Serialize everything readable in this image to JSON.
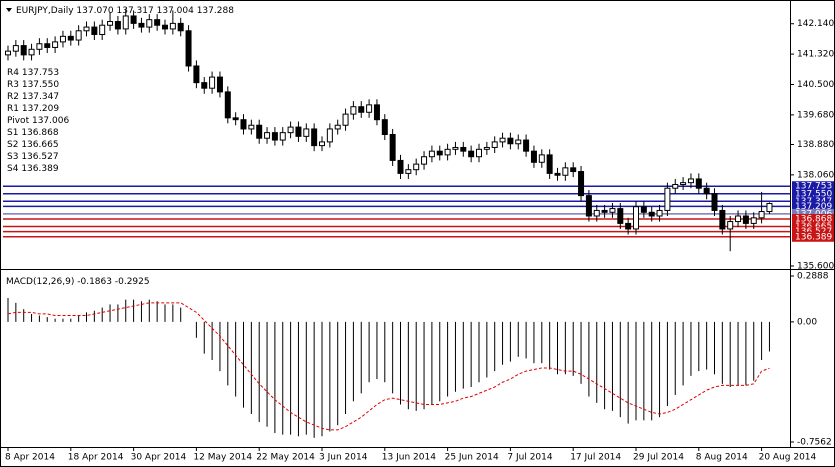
{
  "chart_data": {
    "type": "candlestick",
    "symbol": "EURJPY,Daily",
    "header_values": [
      "137.070",
      "137.317",
      "137.004",
      "137.288"
    ],
    "categories": [
      "8 Apr 2014",
      null,
      null,
      null,
      null,
      null,
      null,
      null,
      "18 Apr 2014",
      null,
      null,
      null,
      null,
      null,
      null,
      null,
      "30 Apr 2014",
      null,
      null,
      null,
      null,
      null,
      null,
      null,
      "12 May 2014",
      null,
      null,
      null,
      null,
      null,
      null,
      null,
      "22 May 2014",
      null,
      null,
      null,
      null,
      null,
      null,
      null,
      "3 Jun 2014",
      null,
      null,
      null,
      null,
      null,
      null,
      null,
      "13 Jun 2014",
      null,
      null,
      null,
      null,
      null,
      null,
      null,
      "25 Jun 2014",
      null,
      null,
      null,
      null,
      null,
      null,
      null,
      "7 Jul 2014",
      null,
      null,
      null,
      null,
      null,
      null,
      null,
      "17 Jul 2014",
      null,
      null,
      null,
      null,
      null,
      null,
      null,
      "29 Jul 2014",
      null,
      null,
      null,
      null,
      null,
      null,
      null,
      "8 Aug 2014",
      null,
      null,
      null,
      null,
      null,
      null,
      null,
      "20 Aug 2014",
      null
    ],
    "open": [
      141.3,
      141.4,
      141.55,
      141.3,
      141.45,
      141.6,
      141.5,
      141.65,
      141.8,
      141.7,
      141.95,
      142.05,
      141.85,
      142.1,
      142.2,
      142.0,
      142.35,
      142.15,
      142.05,
      142.25,
      142.1,
      142.0,
      142.15,
      141.95,
      141.0,
      140.55,
      140.4,
      140.7,
      140.3,
      139.6,
      139.55,
      139.3,
      139.4,
      139.05,
      139.2,
      139.0,
      139.2,
      139.35,
      139.1,
      139.3,
      138.85,
      138.95,
      139.3,
      139.4,
      139.7,
      139.9,
      139.75,
      139.95,
      139.55,
      139.15,
      138.45,
      138.1,
      138.2,
      138.35,
      138.55,
      138.7,
      138.6,
      138.75,
      138.8,
      138.7,
      138.55,
      138.75,
      138.8,
      138.95,
      139.05,
      138.9,
      139.0,
      138.7,
      138.4,
      138.6,
      138.1,
      138.05,
      138.25,
      138.15,
      137.5,
      136.95,
      137.1,
      137.05,
      137.15,
      136.75,
      136.6,
      137.2,
      137.05,
      136.95,
      137.1,
      137.7,
      137.8,
      137.85,
      137.95,
      137.7,
      137.55,
      137.1,
      136.6,
      136.8,
      136.95,
      136.75,
      136.9,
      137.07
    ],
    "high": [
      141.55,
      141.7,
      141.7,
      141.6,
      141.75,
      141.75,
      141.8,
      141.95,
      141.95,
      142.1,
      142.2,
      142.2,
      142.25,
      142.45,
      142.35,
      142.55,
      142.5,
      142.3,
      142.4,
      142.4,
      142.25,
      142.5,
      142.3,
      142.1,
      141.15,
      140.7,
      140.85,
      140.85,
      140.45,
      139.75,
      139.7,
      139.55,
      139.55,
      139.35,
      139.35,
      139.35,
      139.5,
      139.5,
      139.45,
      139.45,
      139.1,
      139.45,
      139.55,
      139.85,
      140.05,
      140.05,
      140.1,
      140.1,
      139.7,
      139.3,
      138.6,
      138.35,
      138.5,
      138.7,
      138.85,
      138.85,
      138.9,
      138.95,
      138.95,
      138.85,
      138.9,
      138.95,
      139.1,
      139.2,
      139.2,
      139.15,
      139.15,
      138.85,
      138.75,
      138.75,
      138.25,
      138.4,
      138.4,
      138.3,
      137.65,
      137.25,
      137.25,
      137.3,
      137.3,
      136.9,
      137.35,
      137.35,
      137.2,
      137.25,
      137.85,
      137.95,
      138.0,
      138.1,
      138.1,
      137.85,
      137.7,
      137.25,
      136.95,
      137.1,
      137.1,
      137.05,
      137.6,
      137.317
    ],
    "low": [
      141.15,
      141.25,
      141.15,
      141.15,
      141.3,
      141.35,
      141.35,
      141.5,
      141.55,
      141.55,
      141.8,
      141.7,
      141.7,
      141.95,
      141.85,
      141.85,
      142.0,
      141.9,
      141.9,
      141.95,
      141.85,
      141.85,
      141.8,
      140.85,
      140.4,
      140.25,
      140.25,
      140.15,
      139.45,
      139.4,
      139.15,
      139.15,
      138.9,
      138.9,
      138.85,
      138.85,
      139.05,
      138.95,
      138.95,
      138.7,
      138.7,
      138.8,
      139.15,
      139.25,
      139.55,
      139.6,
      139.6,
      139.4,
      139.0,
      138.3,
      137.95,
      137.95,
      138.05,
      138.2,
      138.4,
      138.45,
      138.45,
      138.6,
      138.55,
      138.4,
      138.4,
      138.6,
      138.65,
      138.8,
      138.75,
      138.75,
      138.55,
      138.25,
      138.25,
      137.95,
      137.9,
      137.9,
      138.0,
      137.35,
      136.8,
      136.8,
      136.9,
      136.9,
      136.6,
      136.45,
      136.45,
      136.9,
      136.8,
      136.8,
      136.95,
      137.55,
      137.65,
      137.7,
      137.55,
      137.4,
      136.95,
      136.45,
      136.0,
      136.65,
      136.6,
      136.6,
      136.75,
      137.004
    ],
    "close": [
      141.4,
      141.55,
      141.3,
      141.45,
      141.6,
      141.5,
      141.65,
      141.8,
      141.7,
      141.95,
      142.05,
      141.85,
      142.1,
      142.2,
      142.0,
      142.35,
      142.15,
      142.05,
      142.25,
      142.1,
      142.0,
      142.15,
      141.95,
      141.0,
      140.55,
      140.4,
      140.7,
      140.3,
      139.6,
      139.55,
      139.3,
      139.4,
      139.05,
      139.2,
      139.0,
      139.2,
      139.35,
      139.1,
      139.3,
      138.85,
      138.95,
      139.3,
      139.4,
      139.7,
      139.9,
      139.75,
      139.95,
      139.55,
      139.15,
      138.45,
      138.1,
      138.2,
      138.35,
      138.55,
      138.7,
      138.6,
      138.75,
      138.8,
      138.7,
      138.55,
      138.75,
      138.8,
      138.95,
      139.05,
      138.9,
      139.0,
      138.7,
      138.4,
      138.6,
      138.1,
      138.05,
      138.25,
      138.15,
      137.5,
      136.95,
      137.1,
      137.05,
      137.15,
      136.75,
      136.6,
      137.2,
      137.05,
      136.95,
      137.1,
      137.7,
      137.8,
      137.85,
      137.95,
      137.7,
      137.55,
      137.1,
      136.6,
      136.8,
      136.95,
      136.75,
      136.9,
      137.07,
      137.288
    ],
    "ylim": [
      135.6,
      142.7
    ],
    "yticks": [
      {
        "value": 142.14,
        "label": "142.140"
      },
      {
        "value": 141.32,
        "label": "141.320"
      },
      {
        "value": 140.5,
        "label": "140.500"
      },
      {
        "value": 139.68,
        "label": "139.680"
      },
      {
        "value": 138.88,
        "label": "138.880"
      },
      {
        "value": 138.06,
        "label": "138.060"
      },
      {
        "value": 135.6,
        "label": "135.600"
      }
    ],
    "levels": [
      {
        "name": "R4",
        "value": 137.753,
        "label": "137.753",
        "color": "#1a1aa6"
      },
      {
        "name": "R3",
        "value": 137.55,
        "label": "137.550",
        "color": "#1a1aa6"
      },
      {
        "name": "R2",
        "value": 137.347,
        "label": "137.347",
        "color": "#1a1aa6"
      },
      {
        "name": "R1",
        "value": 137.209,
        "label": "137.209",
        "color": "#1a1aa6"
      },
      {
        "name": "Pivot",
        "value": 137.006,
        "label": "137.006",
        "color": "#7a7ab8"
      },
      {
        "name": "S1",
        "value": 136.868,
        "label": "136.868",
        "color": "#c81414"
      },
      {
        "name": "S2",
        "value": 136.665,
        "label": "136.665",
        "color": "#c81414"
      },
      {
        "name": "S3",
        "value": 136.527,
        "label": "136.527",
        "color": "#c81414"
      },
      {
        "name": "S4",
        "value": 136.389,
        "label": "136.389",
        "color": "#c81414"
      }
    ],
    "macd": {
      "title": "MACD(12,26,9)",
      "header_values": [
        "-0.1863",
        "-0.2925"
      ],
      "values": [
        0.15,
        0.12,
        0.08,
        0.05,
        0.04,
        0.03,
        0.02,
        0.02,
        0.02,
        0.04,
        0.06,
        0.07,
        0.09,
        0.11,
        0.11,
        0.14,
        0.14,
        0.13,
        0.14,
        0.13,
        0.11,
        0.11,
        0.09,
        0.0,
        -0.1,
        -0.2,
        -0.24,
        -0.31,
        -0.4,
        -0.47,
        -0.54,
        -0.58,
        -0.63,
        -0.66,
        -0.7,
        -0.71,
        -0.71,
        -0.72,
        -0.71,
        -0.73,
        -0.72,
        -0.69,
        -0.65,
        -0.58,
        -0.5,
        -0.45,
        -0.38,
        -0.36,
        -0.38,
        -0.45,
        -0.52,
        -0.55,
        -0.56,
        -0.55,
        -0.52,
        -0.5,
        -0.47,
        -0.44,
        -0.42,
        -0.41,
        -0.38,
        -0.35,
        -0.31,
        -0.27,
        -0.25,
        -0.22,
        -0.23,
        -0.26,
        -0.26,
        -0.3,
        -0.33,
        -0.33,
        -0.34,
        -0.39,
        -0.47,
        -0.51,
        -0.55,
        -0.56,
        -0.6,
        -0.64,
        -0.62,
        -0.62,
        -0.62,
        -0.6,
        -0.53,
        -0.46,
        -0.4,
        -0.34,
        -0.31,
        -0.3,
        -0.33,
        -0.39,
        -0.41,
        -0.4,
        -0.4,
        -0.37,
        -0.24,
        -0.1863
      ],
      "signal": [
        0.05,
        0.06,
        0.06,
        0.06,
        0.05,
        0.05,
        0.04,
        0.04,
        0.04,
        0.04,
        0.04,
        0.05,
        0.06,
        0.07,
        0.08,
        0.09,
        0.1,
        0.11,
        0.12,
        0.12,
        0.12,
        0.12,
        0.12,
        0.09,
        0.06,
        0.01,
        -0.04,
        -0.09,
        -0.15,
        -0.21,
        -0.27,
        -0.33,
        -0.39,
        -0.44,
        -0.49,
        -0.53,
        -0.57,
        -0.6,
        -0.63,
        -0.65,
        -0.67,
        -0.68,
        -0.68,
        -0.66,
        -0.63,
        -0.6,
        -0.56,
        -0.52,
        -0.49,
        -0.48,
        -0.49,
        -0.5,
        -0.51,
        -0.52,
        -0.52,
        -0.52,
        -0.51,
        -0.5,
        -0.48,
        -0.47,
        -0.45,
        -0.43,
        -0.41,
        -0.38,
        -0.36,
        -0.33,
        -0.31,
        -0.3,
        -0.29,
        -0.29,
        -0.3,
        -0.31,
        -0.31,
        -0.33,
        -0.36,
        -0.39,
        -0.42,
        -0.45,
        -0.48,
        -0.51,
        -0.53,
        -0.55,
        -0.57,
        -0.58,
        -0.57,
        -0.55,
        -0.52,
        -0.49,
        -0.46,
        -0.43,
        -0.41,
        -0.4,
        -0.4,
        -0.4,
        -0.4,
        -0.39,
        -0.31,
        -0.2925
      ],
      "bar_color": "#000000",
      "signal_color": "#e00000",
      "ylim": [
        -0.7562,
        0.2888
      ],
      "yticks": [
        0.2888,
        {
          "value": 0,
          "label": "0.00"
        },
        -0.7562
      ]
    }
  }
}
